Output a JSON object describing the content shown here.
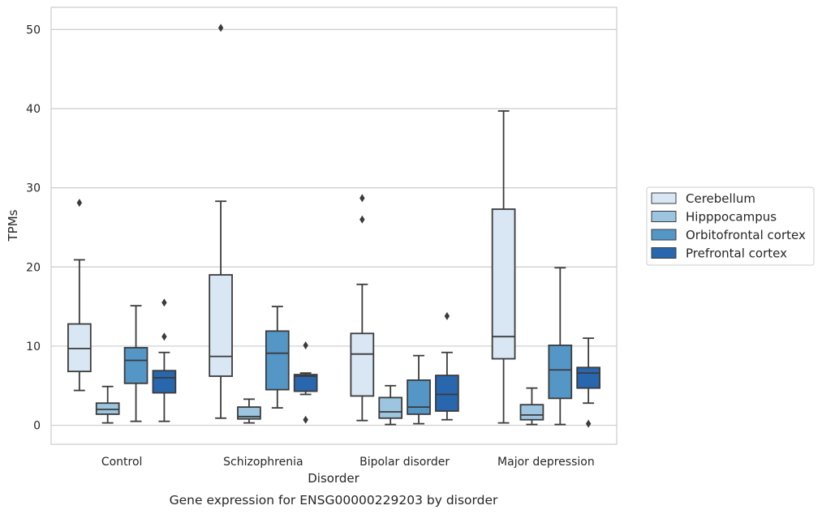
{
  "chart_data": {
    "type": "box",
    "title": "",
    "caption": "Gene expression for ENSG00000229203 by disorder",
    "xlabel": "Disorder",
    "ylabel": "TPMs",
    "ylim": [
      -2.4,
      52.8
    ],
    "yticks": [
      "0",
      "10",
      "20",
      "30",
      "40",
      "50"
    ],
    "ytick_values": [
      0,
      10,
      20,
      30,
      40,
      50
    ],
    "grid": "horizontal",
    "legend_position": "right-center",
    "categories": [
      "Control",
      "Schizophrenia",
      "Bipolar disorder",
      "Major depression"
    ],
    "series": [
      {
        "name": "Cerebellum",
        "color": "#d9e6f3",
        "boxes": [
          {
            "whisker_low": 4.4,
            "q1": 6.8,
            "median": 9.7,
            "q3": 12.8,
            "whisker_high": 20.9,
            "outliers": [
              28.1
            ]
          },
          {
            "whisker_low": 0.9,
            "q1": 6.2,
            "median": 8.7,
            "q3": 19.0,
            "whisker_high": 28.3,
            "outliers": [
              50.2
            ]
          },
          {
            "whisker_low": 0.6,
            "q1": 3.7,
            "median": 9.0,
            "q3": 11.6,
            "whisker_high": 17.8,
            "outliers": [
              26.0,
              28.7
            ]
          },
          {
            "whisker_low": 0.3,
            "q1": 8.4,
            "median": 11.2,
            "q3": 27.3,
            "whisker_high": 39.7,
            "outliers": []
          }
        ]
      },
      {
        "name": "Hipppocampus",
        "color": "#9dc5df",
        "boxes": [
          {
            "whisker_low": 0.3,
            "q1": 1.4,
            "median": 2.0,
            "q3": 2.8,
            "whisker_high": 4.9,
            "outliers": []
          },
          {
            "whisker_low": 0.3,
            "q1": 0.8,
            "median": 1.1,
            "q3": 2.3,
            "whisker_high": 3.3,
            "outliers": []
          },
          {
            "whisker_low": 0.1,
            "q1": 0.9,
            "median": 1.7,
            "q3": 3.5,
            "whisker_high": 5.0,
            "outliers": []
          },
          {
            "whisker_low": 0.1,
            "q1": 0.7,
            "median": 1.3,
            "q3": 2.6,
            "whisker_high": 4.7,
            "outliers": []
          }
        ]
      },
      {
        "name": "Orbitofrontal cortex",
        "color": "#5497c7",
        "boxes": [
          {
            "whisker_low": 0.5,
            "q1": 5.3,
            "median": 8.2,
            "q3": 9.8,
            "whisker_high": 15.1,
            "outliers": []
          },
          {
            "whisker_low": 2.2,
            "q1": 4.5,
            "median": 9.1,
            "q3": 11.9,
            "whisker_high": 15.0,
            "outliers": []
          },
          {
            "whisker_low": 0.2,
            "q1": 1.4,
            "median": 2.3,
            "q3": 5.7,
            "whisker_high": 8.8,
            "outliers": []
          },
          {
            "whisker_low": 0.1,
            "q1": 3.4,
            "median": 7.0,
            "q3": 10.1,
            "whisker_high": 19.9,
            "outliers": []
          }
        ]
      },
      {
        "name": "Prefrontal cortex",
        "color": "#2867ad",
        "boxes": [
          {
            "whisker_low": 0.5,
            "q1": 4.1,
            "median": 6.0,
            "q3": 6.9,
            "whisker_high": 9.2,
            "outliers": [
              11.2,
              15.5
            ]
          },
          {
            "whisker_low": 3.9,
            "q1": 4.3,
            "median": 6.2,
            "q3": 6.4,
            "whisker_high": 6.6,
            "outliers": [
              0.7,
              10.1
            ]
          },
          {
            "whisker_low": 0.7,
            "q1": 1.8,
            "median": 3.9,
            "q3": 6.3,
            "whisker_high": 9.2,
            "outliers": [
              13.8
            ]
          },
          {
            "whisker_low": 2.8,
            "q1": 4.7,
            "median": 6.6,
            "q3": 7.3,
            "whisker_high": 11.0,
            "outliers": [
              0.2
            ]
          }
        ]
      }
    ]
  }
}
